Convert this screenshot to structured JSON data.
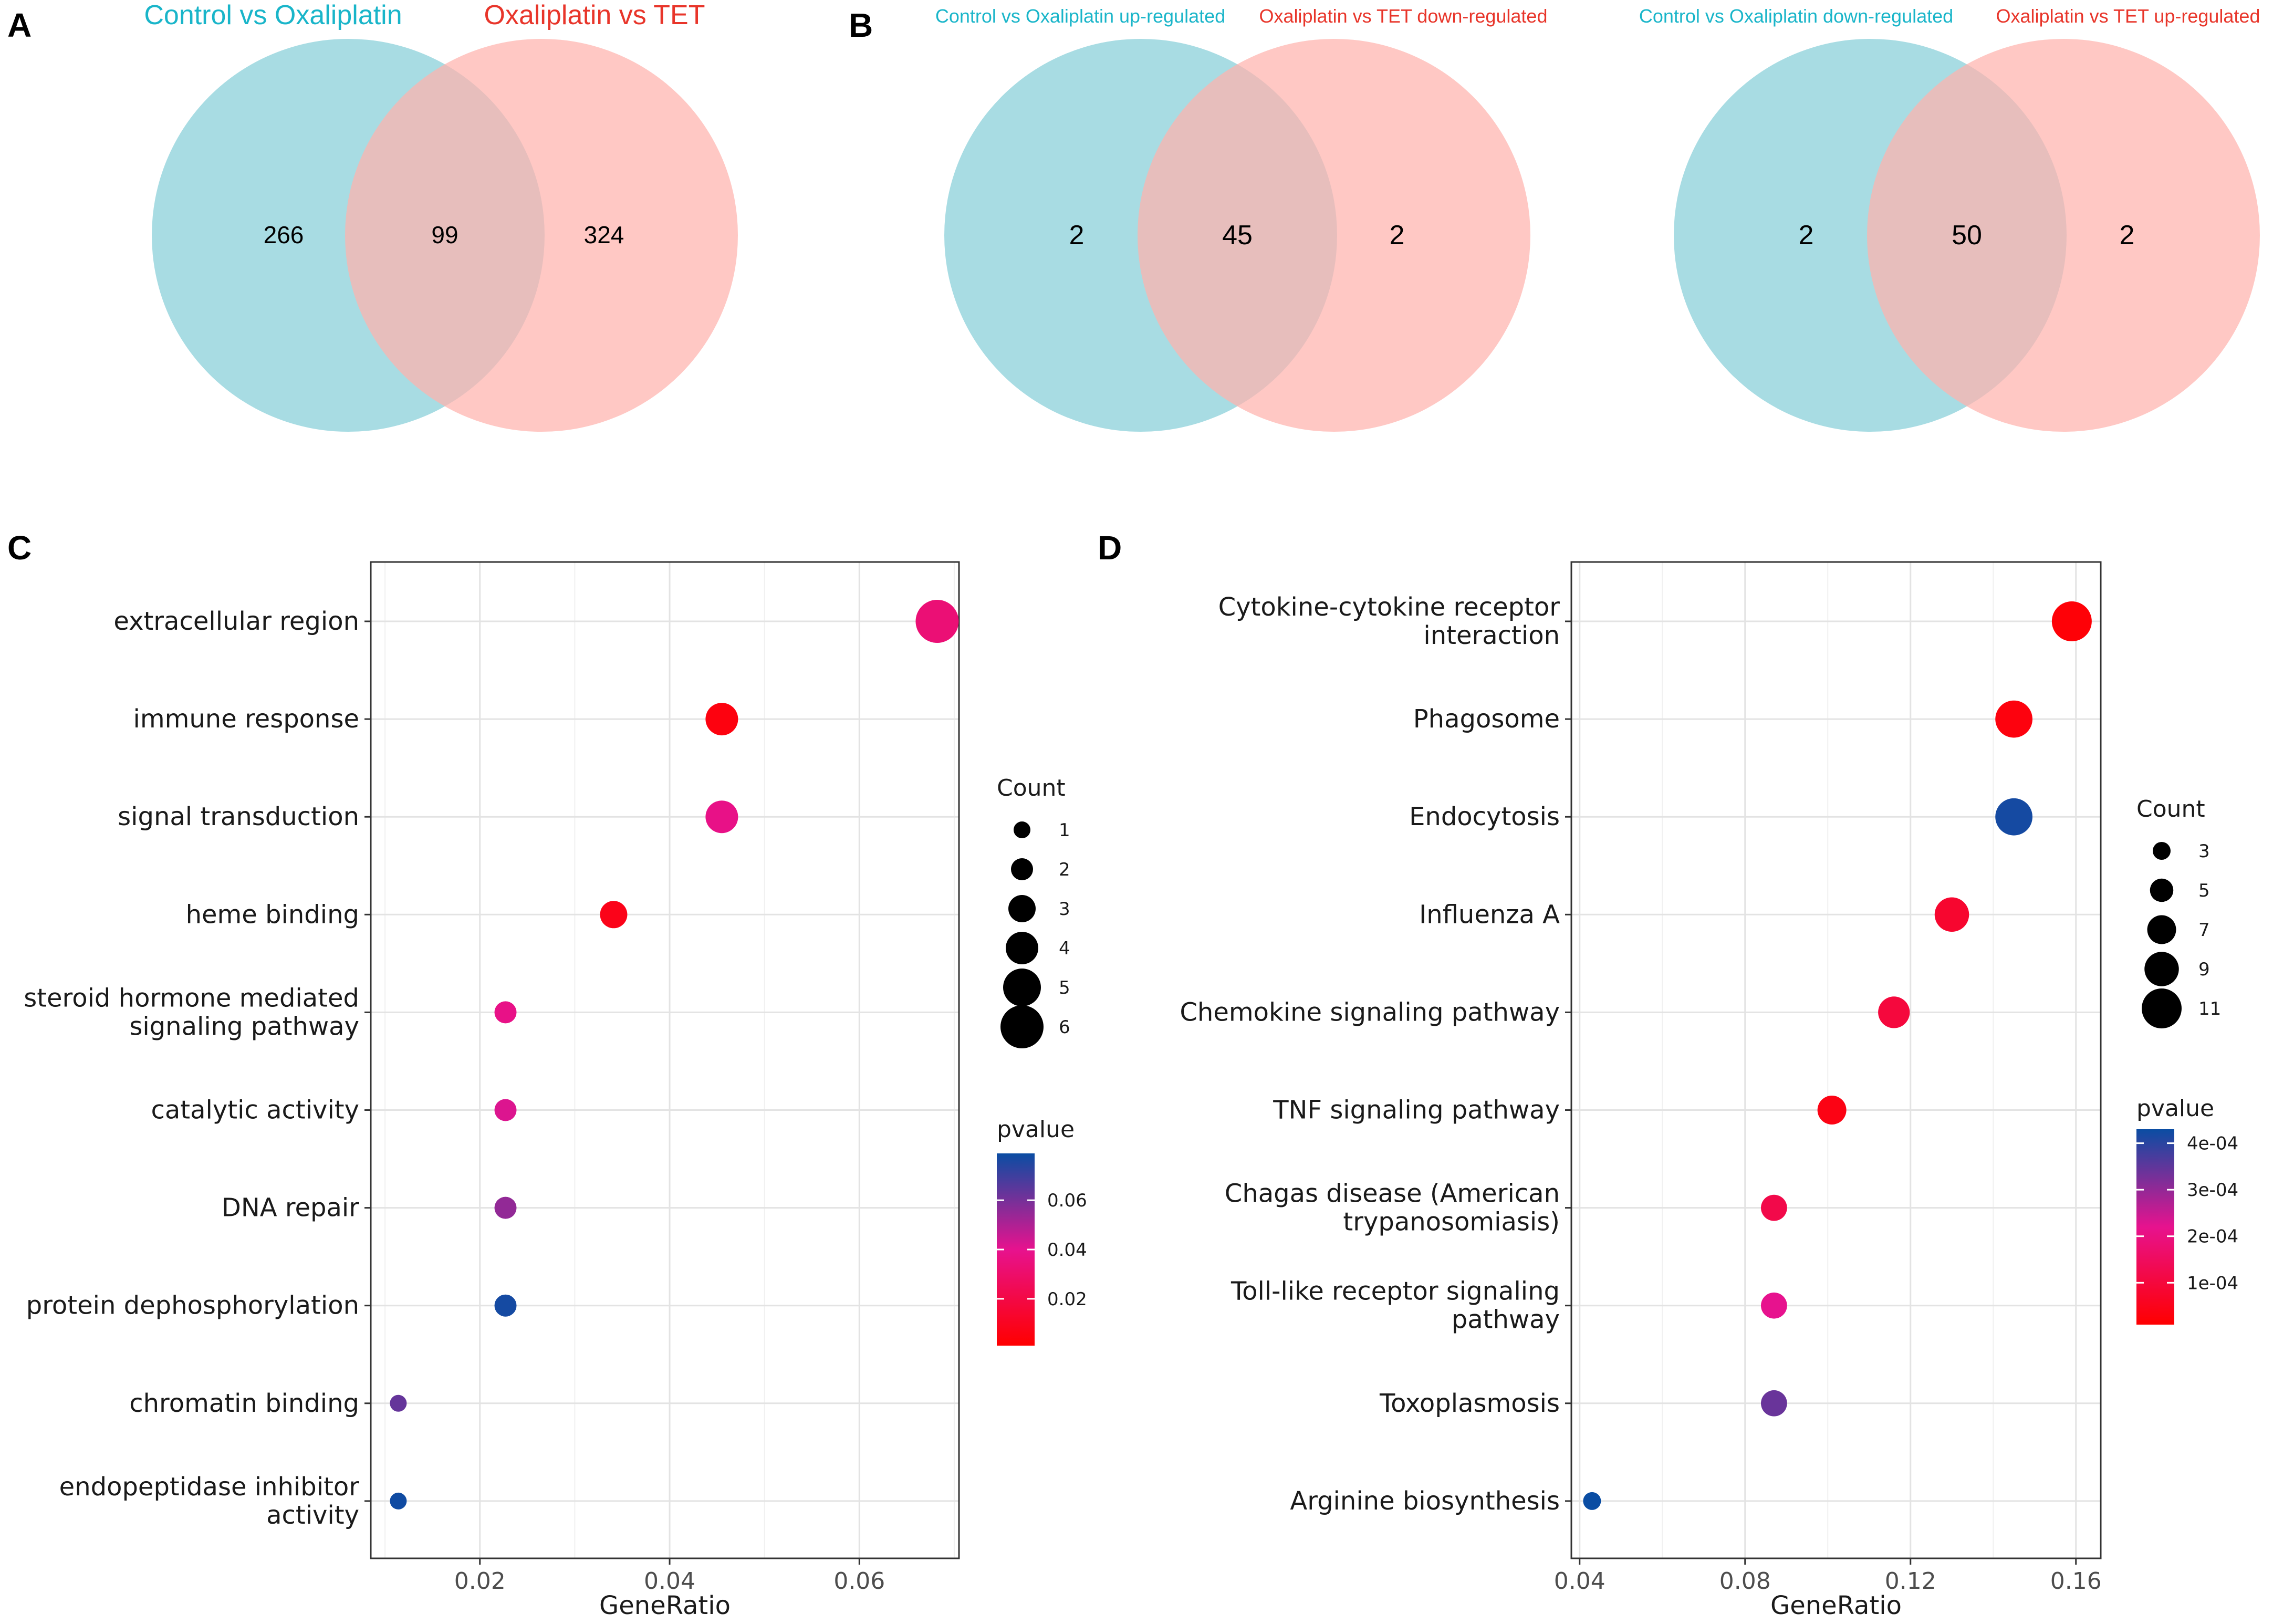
{
  "panels": {
    "A": "A",
    "B": "B",
    "C": "C",
    "D": "D"
  },
  "colors": {
    "venn_left": "#a8dce3",
    "venn_right": "#ffb3ad",
    "title_left": "#19b5c9",
    "title_right": "#e8352a",
    "low_p": "#ff0000",
    "mid_p": "#e7128e",
    "high_p": "#0a4da3"
  },
  "chart_data": [
    {
      "type": "venn",
      "panel": "A",
      "sets": [
        "Control vs Oxaliplatin",
        "Oxaliplatin vs TET"
      ],
      "values": {
        "left_only": 266,
        "overlap": 99,
        "right_only": 324
      }
    },
    {
      "type": "venn",
      "panel": "B",
      "sets": [
        "Control vs Oxaliplatin up-regulated",
        "Oxaliplatin vs TET down-regulated"
      ],
      "values": {
        "left_only": 2,
        "overlap": 45,
        "right_only": 2
      }
    },
    {
      "type": "venn",
      "panel": "B",
      "sets": [
        "Control vs Oxaliplatin down-regulated",
        "Oxaliplatin vs TET up-regulated"
      ],
      "values": {
        "left_only": 2,
        "overlap": 50,
        "right_only": 2
      }
    },
    {
      "type": "scatter",
      "panel": "C",
      "xlabel": "GeneRatio",
      "xlim": [
        0.0085,
        0.0705
      ],
      "xticks": [
        0.02,
        0.04,
        0.06
      ],
      "xtick_labels": [
        "0.02",
        "0.04",
        "0.06"
      ],
      "points": [
        {
          "term": [
            "extracellular region"
          ],
          "x": 0.0682,
          "count": 6,
          "pvalue": 0.033
        },
        {
          "term": [
            "immune response"
          ],
          "x": 0.0455,
          "count": 4,
          "pvalue": 0.005
        },
        {
          "term": [
            "signal transduction"
          ],
          "x": 0.0455,
          "count": 4,
          "pvalue": 0.038
        },
        {
          "term": [
            "heme binding"
          ],
          "x": 0.0341,
          "count": 3,
          "pvalue": 0.008
        },
        {
          "term": [
            "steroid hormone mediated",
            "signaling pathway"
          ],
          "x": 0.0227,
          "count": 2,
          "pvalue": 0.038
        },
        {
          "term": [
            "catalytic activity"
          ],
          "x": 0.0227,
          "count": 2,
          "pvalue": 0.042
        },
        {
          "term": [
            "DNA repair"
          ],
          "x": 0.0227,
          "count": 2,
          "pvalue": 0.055
        },
        {
          "term": [
            "protein dephosphorylation"
          ],
          "x": 0.0227,
          "count": 2,
          "pvalue": 0.077
        },
        {
          "term": [
            "chromatin binding"
          ],
          "x": 0.0114,
          "count": 1,
          "pvalue": 0.063
        },
        {
          "term": [
            "endopeptidase inhibitor",
            "activity"
          ],
          "x": 0.0114,
          "count": 1,
          "pvalue": 0.078
        }
      ],
      "legend_count": {
        "title": "Count",
        "values": [
          1,
          2,
          3,
          4,
          5,
          6
        ],
        "labels": [
          "1",
          "2",
          "3",
          "4",
          "5",
          "6"
        ]
      },
      "legend_pvalue": {
        "title": "pvalue",
        "range": [
          0.001,
          0.079
        ],
        "ticks": [
          0.06,
          0.04,
          0.02
        ],
        "labels": [
          "0.06",
          "0.04",
          "0.02"
        ]
      }
    },
    {
      "type": "scatter",
      "panel": "D",
      "xlabel": "GeneRatio",
      "xlim": [
        0.038,
        0.166
      ],
      "xticks": [
        0.04,
        0.08,
        0.12,
        0.16
      ],
      "xtick_labels": [
        "0.04",
        "0.08",
        "0.12",
        "0.16"
      ],
      "points": [
        {
          "term": [
            "Cytokine-cytokine receptor",
            "interaction"
          ],
          "x": 0.159,
          "count": 11,
          "pvalue": 2e-05
        },
        {
          "term": [
            "Phagosome"
          ],
          "x": 0.145,
          "count": 10,
          "pvalue": 3e-05
        },
        {
          "term": [
            "Endocytosis"
          ],
          "x": 0.145,
          "count": 10,
          "pvalue": 0.00042
        },
        {
          "term": [
            "Influenza A"
          ],
          "x": 0.13,
          "count": 9,
          "pvalue": 8e-05
        },
        {
          "term": [
            "Chemokine signaling pathway"
          ],
          "x": 0.116,
          "count": 8,
          "pvalue": 0.0001
        },
        {
          "term": [
            "TNF signaling pathway"
          ],
          "x": 0.101,
          "count": 7,
          "pvalue": 4e-05
        },
        {
          "term": [
            "Chagas disease (American",
            "trypanosomiasis)"
          ],
          "x": 0.087,
          "count": 6,
          "pvalue": 0.00012
        },
        {
          "term": [
            "Toll-like receptor signaling",
            "pathway"
          ],
          "x": 0.087,
          "count": 6,
          "pvalue": 0.00022
        },
        {
          "term": [
            "Toxoplasmosis"
          ],
          "x": 0.087,
          "count": 6,
          "pvalue": 0.00034
        },
        {
          "term": [
            "Arginine biosynthesis"
          ],
          "x": 0.043,
          "count": 3,
          "pvalue": 0.00043
        }
      ],
      "legend_count": {
        "title": "Count",
        "values": [
          3,
          5,
          7,
          9,
          11
        ],
        "labels": [
          "3",
          "5",
          "7",
          "9",
          "11"
        ]
      },
      "legend_pvalue": {
        "title": "pvalue",
        "range": [
          1e-05,
          0.00043
        ],
        "ticks": [
          0.0004,
          0.0003,
          0.0002,
          0.0001
        ],
        "labels": [
          "4e-04",
          "3e-04",
          "2e-04",
          "1e-04"
        ]
      }
    }
  ]
}
